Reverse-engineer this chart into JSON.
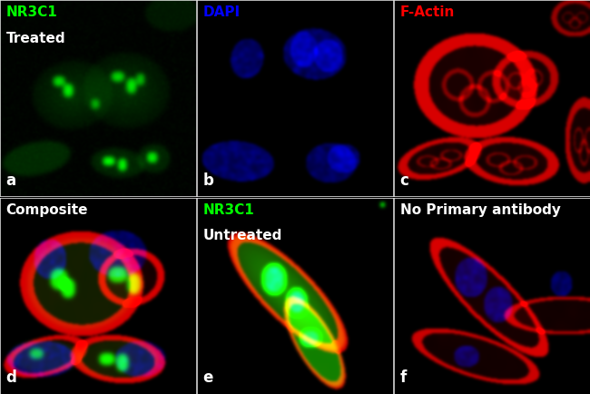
{
  "figsize": [
    6.5,
    4.34
  ],
  "dpi": 100,
  "panels": [
    {
      "label": "a",
      "title_lines": [
        "NR3C1",
        "Treated"
      ],
      "title_colors": [
        "#00ff00",
        "#ffffff"
      ],
      "row": 0,
      "col": 0,
      "crop": [
        0,
        0,
        217,
        217
      ]
    },
    {
      "label": "b",
      "title_lines": [
        "DAPI"
      ],
      "title_colors": [
        "#0000ff"
      ],
      "row": 0,
      "col": 1,
      "crop": [
        217,
        0,
        434,
        217
      ]
    },
    {
      "label": "c",
      "title_lines": [
        "F-Actin"
      ],
      "title_colors": [
        "#ff0000"
      ],
      "row": 0,
      "col": 2,
      "crop": [
        434,
        0,
        650,
        217
      ]
    },
    {
      "label": "d",
      "title_lines": [
        "Composite"
      ],
      "title_colors": [
        "#ffffff"
      ],
      "row": 1,
      "col": 0,
      "crop": [
        0,
        217,
        217,
        434
      ]
    },
    {
      "label": "e",
      "title_lines": [
        "NR3C1",
        "Untreated"
      ],
      "title_colors": [
        "#00ff00",
        "#ffffff"
      ],
      "row": 1,
      "col": 1,
      "crop": [
        217,
        217,
        434,
        434
      ]
    },
    {
      "label": "f",
      "title_lines": [
        "No Primary antibody"
      ],
      "title_colors": [
        "#ffffff"
      ],
      "row": 1,
      "col": 2,
      "crop": [
        434,
        217,
        650,
        434
      ]
    }
  ],
  "label_color": "#ffffff",
  "label_fontsize": 12,
  "title_fontsize": 11,
  "bg_color": "#000000"
}
